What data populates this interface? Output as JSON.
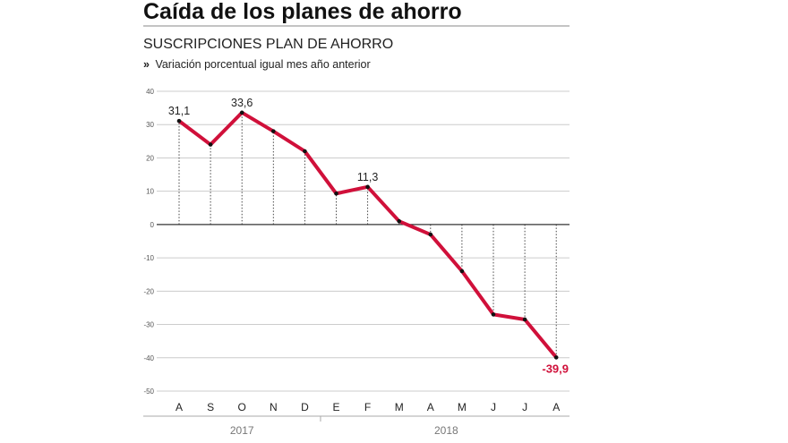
{
  "headline": "Caída de los planes de ahorro",
  "subtitle": "SUSCRIPCIONES PLAN DE AHORRO",
  "description_marker": "»",
  "description": "Variación porcentual igual mes año anterior",
  "colors": {
    "line": "#d0103a",
    "label_negative": "#d0103a",
    "grid": "#cccccc",
    "text": "#222222"
  },
  "chart_data": {
    "type": "line",
    "title": "SUSCRIPCIONES PLAN DE AHORRO",
    "subtitle": "Variación porcentual igual mes año anterior",
    "categories": [
      "A",
      "S",
      "O",
      "N",
      "D",
      "E",
      "F",
      "M",
      "A",
      "M",
      "J",
      "J",
      "A"
    ],
    "years": [
      {
        "label": "2017",
        "months": 5
      },
      {
        "label": "2018",
        "months": 8
      }
    ],
    "series": [
      {
        "values": [
          31.1,
          24,
          33.6,
          28,
          22,
          9.3,
          11.3,
          1,
          -3,
          -14,
          -27,
          -28.5,
          -39.9
        ]
      }
    ],
    "data_labels": [
      {
        "index": 0,
        "text": "31,1"
      },
      {
        "index": 2,
        "text": "33,6"
      },
      {
        "index": 6,
        "text": "11,3"
      },
      {
        "index": 12,
        "text": "-39,9"
      }
    ],
    "ylim": [
      -50,
      40
    ],
    "yticks": [
      40,
      30,
      20,
      10,
      0,
      -10,
      -20,
      -30,
      -40,
      -50
    ],
    "grid": true,
    "xlabel": "",
    "ylabel": ""
  }
}
